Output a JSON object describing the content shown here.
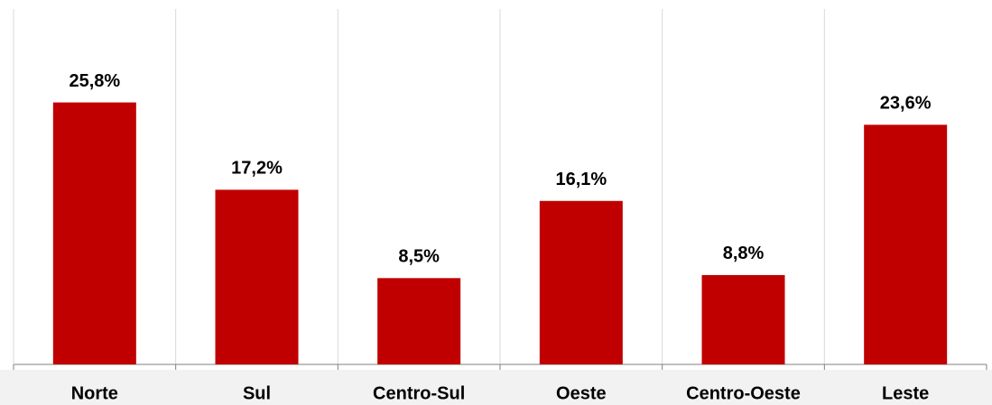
{
  "chart_data": {
    "type": "bar",
    "categories": [
      "Norte",
      "Sul",
      "Centro-Sul",
      "Oeste",
      "Centro-Oeste",
      "Leste"
    ],
    "values": [
      25.8,
      17.2,
      8.5,
      16.1,
      8.8,
      23.6
    ],
    "value_labels": [
      "25,8%",
      "17,2%",
      "8,5%",
      "16,1%",
      "8,8%",
      "23,6%"
    ],
    "color": "#c00000",
    "ylim": [
      0,
      35
    ]
  }
}
